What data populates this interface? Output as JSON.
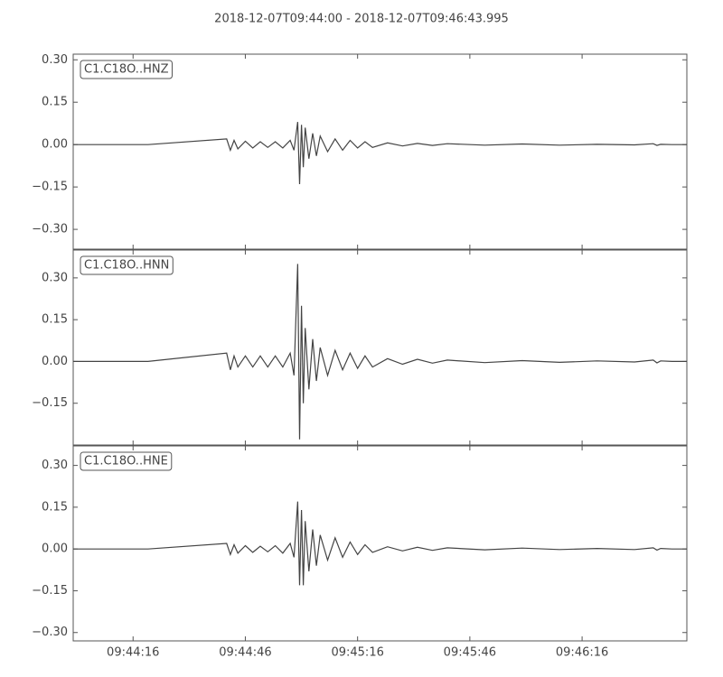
{
  "chart_data": [
    {
      "type": "line",
      "title": "2018-12-07T09:44:00  -  2018-12-07T09:46:43.995",
      "xlim": [
        0,
        163.995
      ],
      "ylim": [
        -0.37,
        0.32
      ],
      "yticks": [
        {
          "value": 0.3,
          "label": "0.30"
        },
        0.15,
        {
          "value": 0,
          "label": "0.00"
        },
        {
          "value": -0.15,
          "label": "−0.15"
        },
        {
          "value": -0.3,
          "label": "−0.30"
        }
      ],
      "x": [
        0,
        20,
        41,
        42,
        43,
        44,
        46,
        48,
        50,
        52,
        54,
        56,
        58,
        59,
        60,
        60.5,
        61,
        61.5,
        62,
        63,
        64,
        65,
        66,
        68,
        70,
        72,
        74,
        76,
        78,
        80,
        84,
        88,
        92,
        96,
        100,
        110,
        120,
        130,
        140,
        150,
        155,
        156,
        157,
        160,
        163.995
      ],
      "series": [
        {
          "name": "C1.C18O..HNZ",
          "color": "#444444",
          "values": [
            0,
            0,
            0.02,
            -0.02,
            0.015,
            -0.015,
            0.012,
            -0.012,
            0.01,
            -0.01,
            0.01,
            -0.012,
            0.015,
            -0.02,
            0.08,
            -0.14,
            0.07,
            -0.08,
            0.06,
            -0.05,
            0.04,
            -0.04,
            0.03,
            -0.025,
            0.02,
            -0.02,
            0.015,
            -0.012,
            0.01,
            -0.01,
            0.006,
            -0.005,
            0.004,
            -0.003,
            0.003,
            -0.002,
            0.002,
            -0.002,
            0.001,
            -0.001,
            0.003,
            -0.003,
            0.001,
            0,
            0
          ]
        }
      ]
    },
    {
      "type": "line",
      "xlim": [
        0,
        163.995
      ],
      "ylim": [
        -0.3,
        0.4
      ],
      "yticks": [
        {
          "value": 0.3,
          "label": "0.30"
        },
        0.15,
        {
          "value": 0,
          "label": "0.00"
        },
        {
          "value": -0.15,
          "label": "−0.15"
        }
      ],
      "x": [
        0,
        20,
        41,
        42,
        43,
        44,
        46,
        48,
        50,
        52,
        54,
        56,
        58,
        59,
        60,
        60.5,
        61,
        61.5,
        62,
        63,
        64,
        65,
        66,
        68,
        70,
        72,
        74,
        76,
        78,
        80,
        84,
        88,
        92,
        96,
        100,
        110,
        120,
        130,
        140,
        150,
        155,
        156,
        157,
        160,
        163.995
      ],
      "series": [
        {
          "name": "C1.C18O..HNN",
          "color": "#444444",
          "values": [
            0,
            0,
            0.03,
            -0.03,
            0.02,
            -0.02,
            0.02,
            -0.02,
            0.02,
            -0.02,
            0.02,
            -0.02,
            0.03,
            -0.05,
            0.35,
            -0.28,
            0.2,
            -0.15,
            0.12,
            -0.1,
            0.08,
            -0.07,
            0.05,
            -0.05,
            0.04,
            -0.03,
            0.03,
            -0.025,
            0.02,
            -0.02,
            0.01,
            -0.01,
            0.008,
            -0.006,
            0.005,
            -0.004,
            0.003,
            -0.003,
            0.002,
            -0.002,
            0.005,
            -0.005,
            0.002,
            0,
            0
          ]
        }
      ]
    },
    {
      "type": "line",
      "xlim": [
        0,
        163.995
      ],
      "ylim": [
        -0.33,
        0.37
      ],
      "yticks": [
        {
          "value": 0.3,
          "label": "0.30"
        },
        0.15,
        {
          "value": 0,
          "label": "0.00"
        },
        {
          "value": -0.15,
          "label": "−0.15"
        },
        {
          "value": -0.3,
          "label": "−0.30"
        }
      ],
      "xticks": [
        {
          "value": 16,
          "label": "09:44:16"
        },
        {
          "value": 46,
          "label": "09:44:46"
        },
        {
          "value": 76,
          "label": "09:45:16"
        },
        {
          "value": 106,
          "label": "09:45:46"
        },
        {
          "value": 136,
          "label": "09:46:16"
        }
      ],
      "x": [
        0,
        20,
        41,
        42,
        43,
        44,
        46,
        48,
        50,
        52,
        54,
        56,
        58,
        59,
        60,
        60.5,
        61,
        61.5,
        62,
        63,
        64,
        65,
        66,
        68,
        70,
        72,
        74,
        76,
        78,
        80,
        84,
        88,
        92,
        96,
        100,
        110,
        120,
        130,
        140,
        150,
        155,
        156,
        157,
        160,
        163.995
      ],
      "series": [
        {
          "name": "C1.C18O..HNE",
          "color": "#444444",
          "values": [
            0,
            0,
            0.02,
            -0.02,
            0.015,
            -0.015,
            0.012,
            -0.012,
            0.01,
            -0.01,
            0.012,
            -0.015,
            0.02,
            -0.03,
            0.17,
            -0.13,
            0.14,
            -0.13,
            0.1,
            -0.08,
            0.07,
            -0.06,
            0.05,
            -0.04,
            0.04,
            -0.03,
            0.025,
            -0.02,
            0.015,
            -0.012,
            0.008,
            -0.007,
            0.006,
            -0.005,
            0.004,
            -0.003,
            0.003,
            -0.002,
            0.002,
            -0.002,
            0.004,
            -0.004,
            0.002,
            0,
            0
          ]
        }
      ]
    }
  ]
}
